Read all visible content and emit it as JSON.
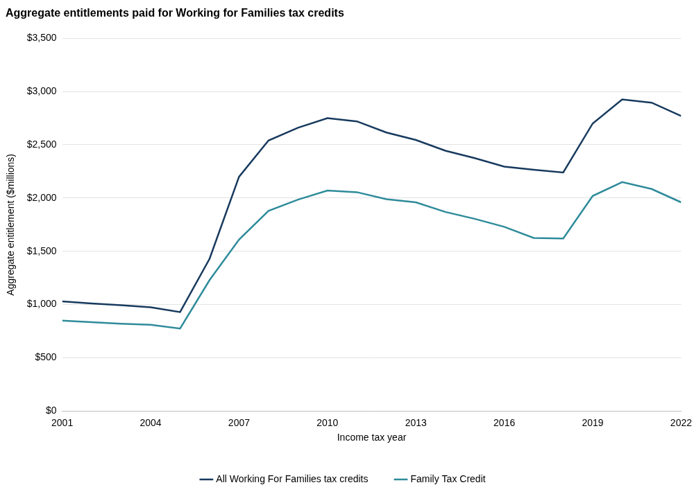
{
  "chart_data": {
    "type": "line",
    "title": "Aggregate entitlements paid for Working for Families tax credits",
    "x_label": "Income tax year",
    "y_label": "Aggregate entitlement ($millions)",
    "x": [
      2001,
      2002,
      2003,
      2004,
      2005,
      2006,
      2007,
      2008,
      2009,
      2010,
      2011,
      2012,
      2013,
      2014,
      2015,
      2016,
      2017,
      2018,
      2019,
      2020,
      2021,
      2022
    ],
    "series": [
      {
        "name": "All Working For Families tax credits",
        "color": "#173a5e",
        "values": [
          1030,
          1010,
          995,
          975,
          930,
          1430,
          2200,
          2540,
          2660,
          2750,
          2720,
          2615,
          2545,
          2445,
          2375,
          2295,
          2265,
          2240,
          2700,
          2925,
          2895,
          2770
        ]
      },
      {
        "name": "Family Tax Credit",
        "color": "#2e8b9a",
        "values": [
          850,
          835,
          820,
          810,
          775,
          1230,
          1610,
          1880,
          1985,
          2070,
          2055,
          1990,
          1960,
          1870,
          1805,
          1730,
          1625,
          1620,
          2020,
          2150,
          2085,
          1960
        ]
      }
    ],
    "xlim": [
      2001,
      2022
    ],
    "xticks": [
      2001,
      2004,
      2007,
      2010,
      2013,
      2016,
      2019,
      2022
    ],
    "ylim": [
      0,
      3500
    ],
    "yticks": [
      {
        "value": 0,
        "label": "$0"
      },
      {
        "value": 500,
        "label": "$500"
      },
      {
        "value": 1000,
        "label": "$1,000"
      },
      {
        "value": 1500,
        "label": "$1,500"
      },
      {
        "value": 2000,
        "label": "$2,000"
      },
      {
        "value": 2500,
        "label": "$2,500"
      },
      {
        "value": 3000,
        "label": "$3,000"
      },
      {
        "value": 3500,
        "label": "$3,500"
      }
    ],
    "grid": true,
    "legend": "bottom"
  }
}
